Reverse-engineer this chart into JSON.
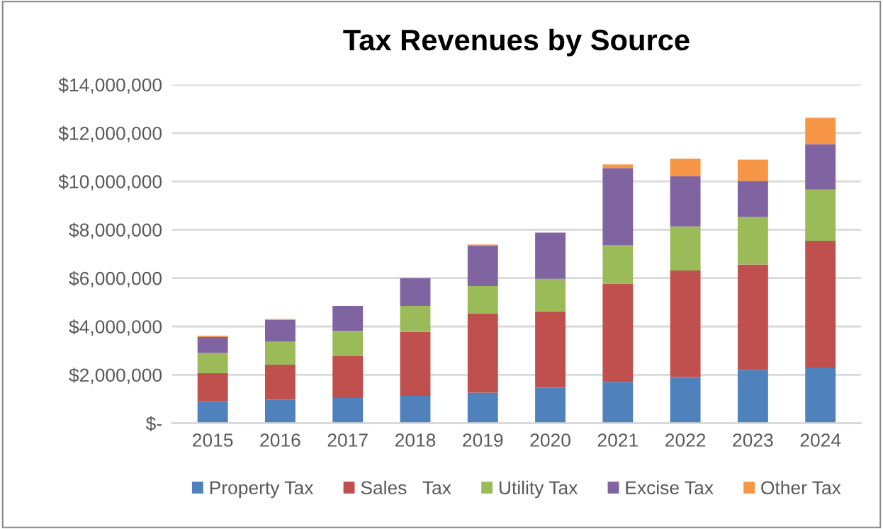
{
  "chart_data": {
    "type": "bar",
    "title": "Tax Revenues by Source",
    "stacked": true,
    "categories": [
      "2015",
      "2016",
      "2017",
      "2018",
      "2019",
      "2020",
      "2021",
      "2022",
      "2023",
      "2024"
    ],
    "series": [
      {
        "name": "Property Tax",
        "color": "#4f81bd",
        "values": [
          920000,
          970000,
          1040000,
          1130000,
          1260000,
          1470000,
          1710000,
          1910000,
          2210000,
          2300000
        ]
      },
      {
        "name": "Sales   Tax",
        "color": "#c0504d",
        "values": [
          1150000,
          1450000,
          1730000,
          2640000,
          3270000,
          3150000,
          4060000,
          4400000,
          4350000,
          5240000
        ]
      },
      {
        "name": "Utility Tax",
        "color": "#9bbb59",
        "values": [
          840000,
          950000,
          1040000,
          1080000,
          1140000,
          1350000,
          1580000,
          1830000,
          1970000,
          2120000
        ]
      },
      {
        "name": "Excise Tax",
        "color": "#8064a2",
        "values": [
          660000,
          900000,
          1040000,
          1150000,
          1680000,
          1910000,
          3200000,
          2070000,
          1490000,
          1880000
        ]
      },
      {
        "name": "Other Tax",
        "color": "#f79646",
        "values": [
          50000,
          40000,
          0,
          0,
          40000,
          0,
          150000,
          730000,
          880000,
          1090000
        ]
      }
    ],
    "ylim": [
      0,
      14000000
    ],
    "yticks": [
      {
        "value": 0,
        "label": "$-"
      },
      {
        "value": 2000000,
        "label": "$2,000,000"
      },
      {
        "value": 4000000,
        "label": "$4,000,000"
      },
      {
        "value": 6000000,
        "label": "$6,000,000"
      },
      {
        "value": 8000000,
        "label": "$8,000,000"
      },
      {
        "value": 10000000,
        "label": "$10,000,000"
      },
      {
        "value": 12000000,
        "label": "$12,000,000"
      },
      {
        "value": 14000000,
        "label": "$14,000,000"
      }
    ],
    "grid": "y",
    "legend": "bottom"
  }
}
